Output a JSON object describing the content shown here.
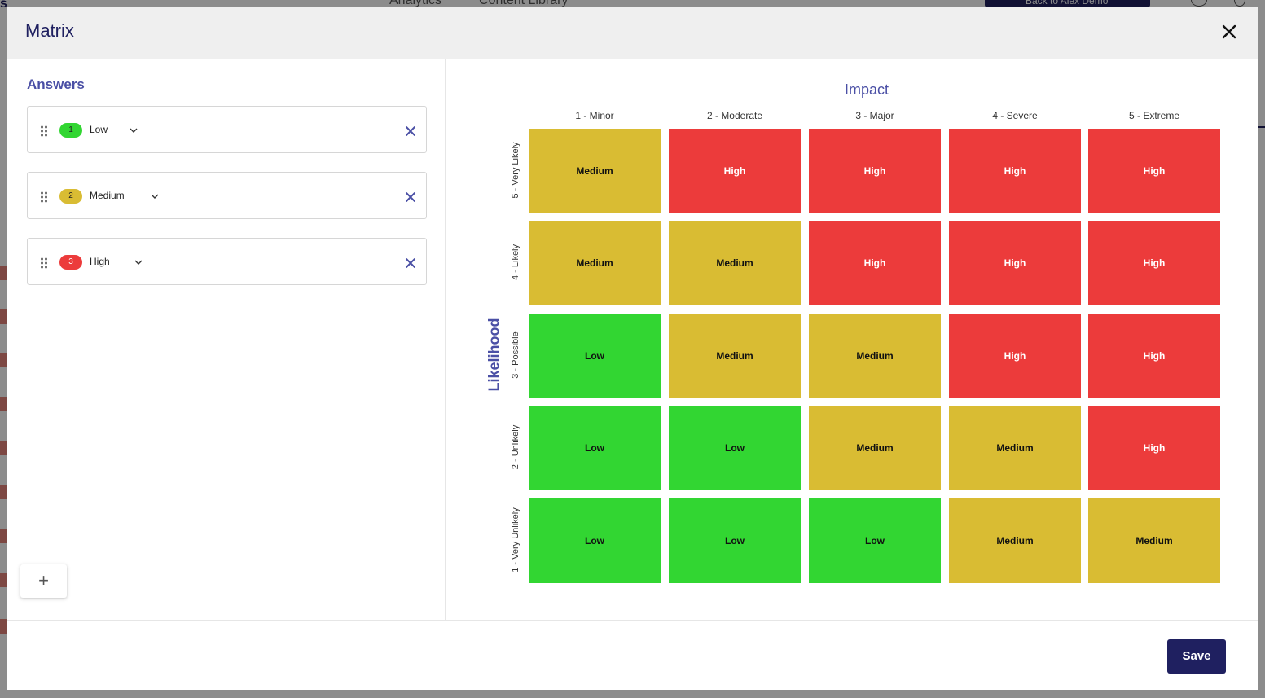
{
  "background": {
    "nav": [
      "Analytics",
      "Content Library"
    ],
    "back_button": "Back to Alex Demo"
  },
  "modal": {
    "title": "Matrix",
    "close_icon": "close-icon"
  },
  "answers": {
    "title": "Answers",
    "items": [
      {
        "number": "1",
        "label": "Low",
        "color": "#32d632"
      },
      {
        "number": "2",
        "label": "Medium",
        "color": "#d9bc33"
      },
      {
        "number": "3",
        "label": "High",
        "color": "#ec3b3b"
      }
    ],
    "add_label": "+"
  },
  "matrix": {
    "impact_title": "Impact",
    "likelihood_title": "Likelihood",
    "columns": [
      "1 - Minor",
      "2 - Moderate",
      "3 - Major",
      "4 - Severe",
      "5 - Extreme"
    ],
    "rows": [
      "5 - Very Likely",
      "4 - Likely",
      "3 - Possible",
      "2 - Unlikely",
      "1 - Very Unlikely"
    ],
    "cells": [
      [
        "Medium",
        "High",
        "High",
        "High",
        "High"
      ],
      [
        "Medium",
        "Medium",
        "High",
        "High",
        "High"
      ],
      [
        "Low",
        "Medium",
        "Medium",
        "High",
        "High"
      ],
      [
        "Low",
        "Low",
        "Medium",
        "Medium",
        "High"
      ],
      [
        "Low",
        "Low",
        "Low",
        "Medium",
        "Medium"
      ]
    ],
    "colors": {
      "Low": "#32d632",
      "Medium": "#d9bc33",
      "High": "#ec3b3b"
    }
  },
  "footer": {
    "save_label": "Save"
  }
}
